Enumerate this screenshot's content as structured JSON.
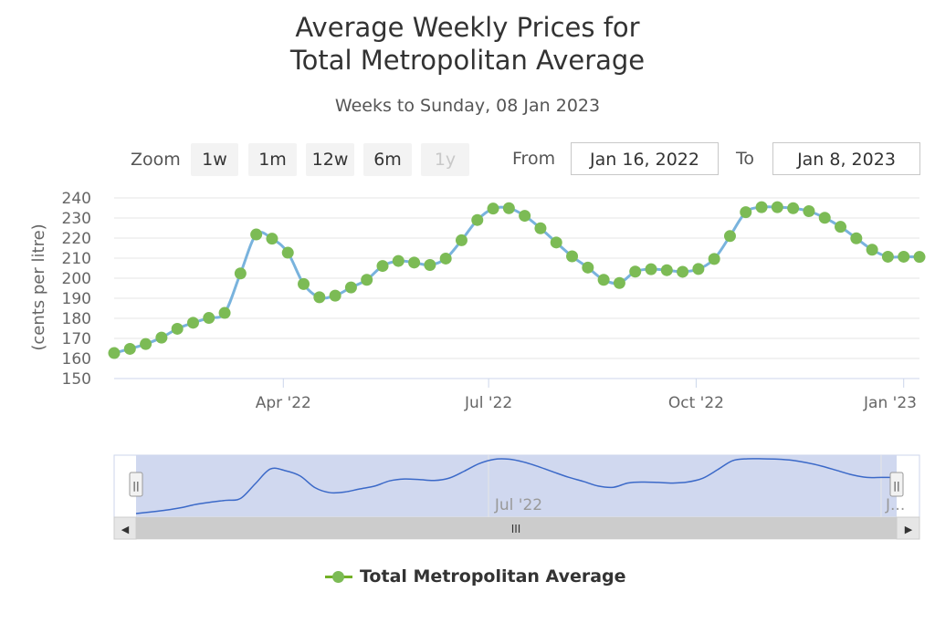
{
  "title_line1": "Average Weekly Prices for",
  "title_line2": "Total Metropolitan Average",
  "subtitle": "Weeks to Sunday, 08 Jan 2023",
  "range_selector": {
    "zoom_label": "Zoom",
    "buttons": [
      "1w",
      "1m",
      "12w",
      "6m",
      "1y"
    ],
    "disabled_button": "1y",
    "from_label": "From",
    "from_value": "Jan 16, 2022",
    "to_label": "To",
    "to_value": "Jan 8, 2023"
  },
  "navigator": {
    "label": "Jul '22",
    "label_right": "J...",
    "scrollbar_grip": "III",
    "left_arrow": "◀",
    "right_arrow": "▶",
    "handle_glyph": "||"
  },
  "colors": {
    "line": "#79b3dd",
    "marker": "#7cbb55",
    "navigator_fill": "#cdd6ee",
    "navigator_line": "#3b69c8",
    "grid": "#e6e6e6"
  },
  "chart_data": {
    "type": "line",
    "title": "Average Weekly Prices for Total Metropolitan Average",
    "subtitle": "Weeks to Sunday, 08 Jan 2023",
    "ylabel": "(cents per litre)",
    "ylim": [
      150,
      240
    ],
    "yticks": [
      150,
      160,
      170,
      180,
      190,
      200,
      210,
      220,
      230,
      240
    ],
    "xlim": [
      "2022-01-16",
      "2023-01-08"
    ],
    "xticks": [
      {
        "date": "2022-04-01",
        "label": "Apr '22"
      },
      {
        "date": "2022-07-01",
        "label": "Jul '22"
      },
      {
        "date": "2022-10-01",
        "label": "Oct '22"
      },
      {
        "date": "2023-01-01",
        "label": "Jan '23"
      }
    ],
    "grid": true,
    "legend": "bottom-center",
    "series": [
      {
        "name": "Total Metropolitan Average",
        "x": [
          "2022-01-16",
          "2022-01-23",
          "2022-01-30",
          "2022-02-06",
          "2022-02-13",
          "2022-02-20",
          "2022-02-27",
          "2022-03-06",
          "2022-03-13",
          "2022-03-20",
          "2022-03-27",
          "2022-04-03",
          "2022-04-10",
          "2022-04-17",
          "2022-04-24",
          "2022-05-01",
          "2022-05-08",
          "2022-05-15",
          "2022-05-22",
          "2022-05-29",
          "2022-06-05",
          "2022-06-12",
          "2022-06-19",
          "2022-06-26",
          "2022-07-03",
          "2022-07-10",
          "2022-07-17",
          "2022-07-24",
          "2022-07-31",
          "2022-08-07",
          "2022-08-14",
          "2022-08-21",
          "2022-08-28",
          "2022-09-04",
          "2022-09-11",
          "2022-09-18",
          "2022-09-25",
          "2022-10-02",
          "2022-10-09",
          "2022-10-16",
          "2022-10-23",
          "2022-10-30",
          "2022-11-06",
          "2022-11-13",
          "2022-11-20",
          "2022-11-27",
          "2022-12-04",
          "2022-12-11",
          "2022-12-18",
          "2022-12-25",
          "2023-01-01",
          "2023-01-08"
        ],
        "values": [
          162.7,
          164.8,
          167.2,
          170.4,
          174.8,
          177.8,
          180.2,
          182.7,
          202.4,
          221.8,
          219.7,
          212.7,
          197.1,
          190.5,
          191.3,
          195.4,
          199.2,
          206.1,
          208.6,
          207.8,
          206.6,
          209.8,
          218.9,
          229.0,
          234.7,
          234.9,
          231.1,
          224.9,
          217.8,
          210.9,
          205.3,
          199.2,
          197.6,
          203.3,
          204.5,
          204.0,
          203.2,
          204.6,
          209.6,
          221.0,
          232.9,
          235.4,
          235.4,
          234.9,
          233.4,
          230.1,
          225.6,
          219.9,
          214.2,
          210.7,
          210.7,
          210.6
        ]
      }
    ]
  }
}
